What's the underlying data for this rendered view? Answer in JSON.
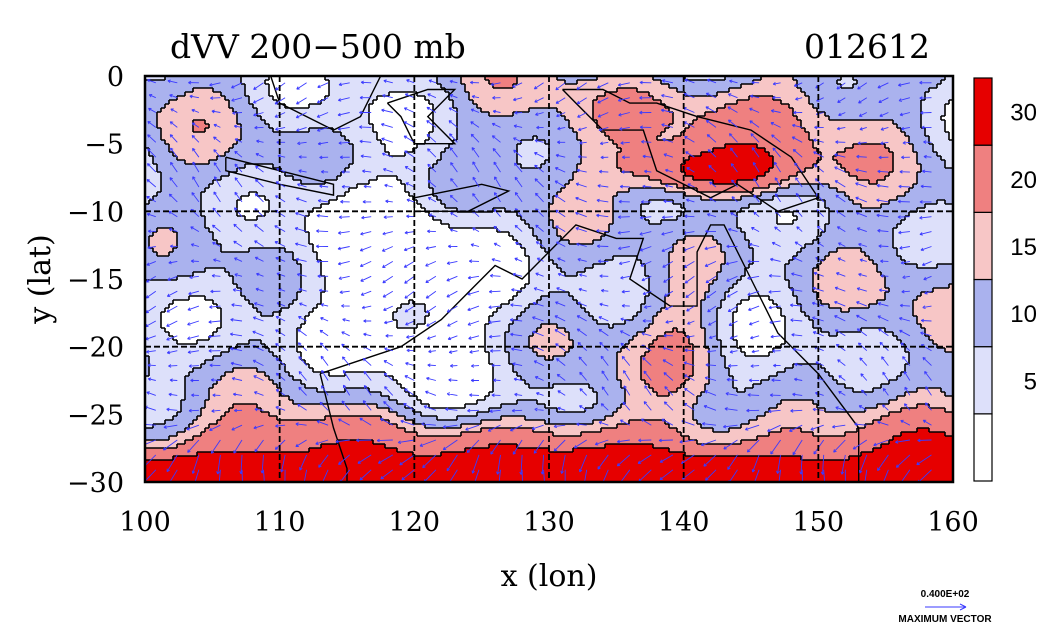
{
  "chart_data": {
    "type": "heatmap",
    "title": "dVV 200−500 mb",
    "date_label": "012612",
    "xlabel": "x (lon)",
    "ylabel": "y (lat)",
    "xlim": [
      100,
      160
    ],
    "ylim": [
      -30,
      0
    ],
    "x_ticks": [
      "100",
      "110",
      "120",
      "130",
      "140",
      "150",
      "160"
    ],
    "y_ticks": [
      "0",
      "−5",
      "−10",
      "−15",
      "−20",
      "−25",
      "−30"
    ],
    "grid": true,
    "colorbar": {
      "levels": [
        "5",
        "10",
        "15",
        "20",
        "30"
      ],
      "colors": [
        "#ffffff",
        "#dde0fa",
        "#aab2ee",
        "#f7c6c6",
        "#ef8080",
        "#e60000"
      ]
    },
    "vector_legend": {
      "value": "0.400E+02",
      "label": "MAXIMUM VECTOR"
    }
  }
}
